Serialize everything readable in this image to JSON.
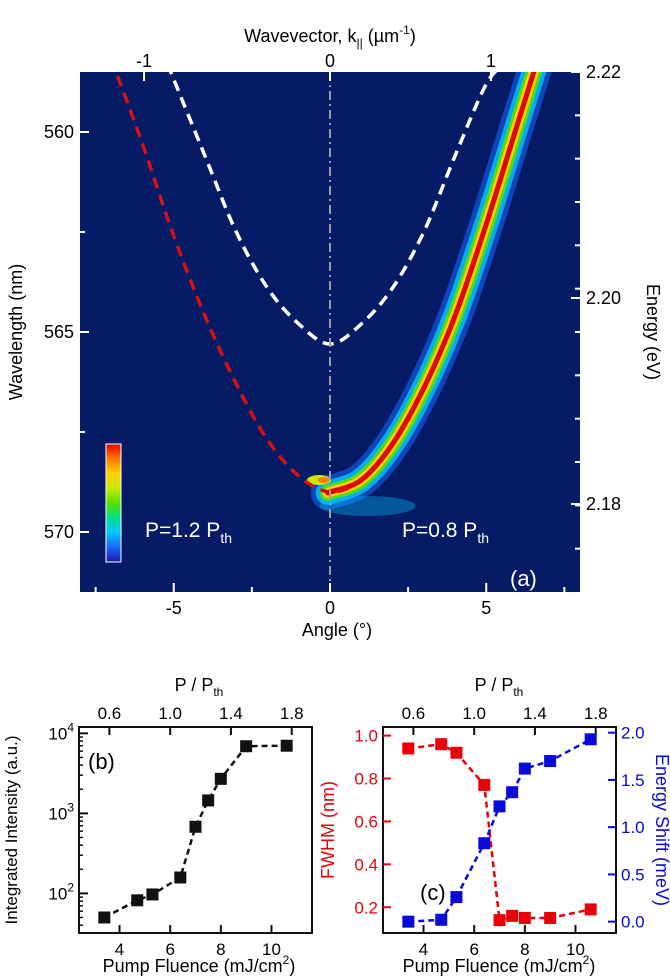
{
  "chart_data": [
    {
      "panel": "(a)",
      "type": "heatmap",
      "xlabel": "Angle (°)",
      "x_ticks": [
        -5,
        0,
        5
      ],
      "xlim": [
        -8,
        8
      ],
      "ylabel": "Wavelength (nm)",
      "y_ticks": [
        560,
        565,
        570
      ],
      "ylim": [
        571.5,
        558.5
      ],
      "top_axis": {
        "label_main": "Wavevector, k",
        "label_sub": "||",
        "label_unit_pre": " (µm",
        "label_unit_sup": "-1",
        "label_unit_post": ")",
        "ticks": [
          "-1",
          "0",
          "1"
        ]
      },
      "right_axis": {
        "label": "Energy (eV)",
        "ticks": [
          "2.22",
          "2.20",
          "2.18"
        ]
      },
      "annotations": {
        "left_label_main": "P=1.2 P",
        "left_label_sub": "th",
        "right_label_main": "P=0.8 P",
        "right_label_sub": "th",
        "panel_label": "(a)"
      },
      "background_color": "#061b66",
      "colormap": [
        "#1a1aa8",
        "#1a66ff",
        "#00c8ff",
        "#00e08a",
        "#56e000",
        "#c8e800",
        "#ffd000",
        "#ff7a00",
        "#e80000"
      ],
      "white_dashed_curve": {
        "angle": [
          -5.2,
          -4,
          -3,
          -2,
          -1,
          0,
          1,
          2,
          3,
          4,
          5,
          5.6
        ],
        "wavelength": [
          558.3,
          560.6,
          562.5,
          563.9,
          564.8,
          565.3,
          564.8,
          563.9,
          562.5,
          560.6,
          558.8,
          558.3
        ]
      },
      "red_dashed_curve": {
        "angle": [
          -6.8,
          -6,
          -5,
          -4,
          -3,
          -2,
          -1,
          0,
          1,
          2,
          3,
          4,
          5,
          6,
          6.6
        ],
        "wavelength": [
          558.6,
          560.3,
          562.6,
          564.6,
          566.3,
          567.7,
          568.6,
          569.0,
          568.7,
          567.8,
          566.4,
          564.6,
          562.3,
          559.8,
          558.3
        ]
      }
    },
    {
      "panel": "(b)",
      "type": "scatter",
      "xlabel_main": "Pump Fluence (mJ/cm",
      "xlabel_sup": "2",
      "xlabel_post": ")",
      "x_ticks": [
        4,
        6,
        8,
        10
      ],
      "xlim": [
        2.4,
        11.6
      ],
      "ylabel": "Integrated Intensity (a.u.)",
      "y_scale": "log",
      "y_ticks_base": "10",
      "y_ticks_exp": [
        "2",
        "3",
        "4"
      ],
      "ylim": [
        32,
        12000
      ],
      "top_axis": {
        "label_main": "P / P",
        "label_sub": "th",
        "ticks": [
          "0.6",
          "1.0",
          "1.4",
          "1.8"
        ]
      },
      "panel_label": "(b)",
      "series": [
        {
          "color": "#111111",
          "x": [
            3.4,
            4.7,
            5.3,
            6.4,
            7.0,
            7.5,
            8.0,
            9.0,
            10.6
          ],
          "y": [
            50,
            82,
            97,
            158,
            680,
            1450,
            2700,
            6900,
            7000
          ]
        }
      ]
    },
    {
      "panel": "(c)",
      "type": "scatter",
      "xlabel_main": "Pump Fluence (mJ/cm",
      "xlabel_sup": "2",
      "xlabel_post": ")",
      "x_ticks": [
        4,
        6,
        8,
        10
      ],
      "xlim": [
        2.4,
        11.6
      ],
      "top_axis": {
        "label_main": "P / P",
        "label_sub": "th",
        "ticks": [
          "0.6",
          "1.0",
          "1.4",
          "1.8"
        ]
      },
      "left_axis": {
        "label": "FWHM (nm)",
        "color": "#e8000b",
        "ticks": [
          "0.2",
          "0.4",
          "0.6",
          "0.8",
          "1.0"
        ],
        "ylim": [
          0.08,
          1.04
        ]
      },
      "right_axis": {
        "label": "Energy Shift (meV)",
        "color": "#0a0ad8",
        "ticks": [
          "0.0",
          "0.5",
          "1.0",
          "1.5",
          "2.0"
        ],
        "ylim": [
          -0.12,
          2.06
        ]
      },
      "panel_label": "(c)",
      "series": [
        {
          "axis": "left",
          "color": "#e8000b",
          "x": [
            3.4,
            4.7,
            5.3,
            6.4,
            7.0,
            7.5,
            8.0,
            9.0,
            10.6
          ],
          "y": [
            0.94,
            0.96,
            0.92,
            0.77,
            0.14,
            0.16,
            0.15,
            0.15,
            0.19
          ]
        },
        {
          "axis": "right",
          "color": "#0a0ad8",
          "x": [
            3.4,
            4.7,
            5.3,
            6.4,
            7.0,
            7.5,
            8.0,
            9.0,
            10.6
          ],
          "y": [
            0.0,
            0.02,
            0.26,
            0.83,
            1.22,
            1.37,
            1.62,
            1.7,
            1.93
          ]
        }
      ]
    }
  ]
}
